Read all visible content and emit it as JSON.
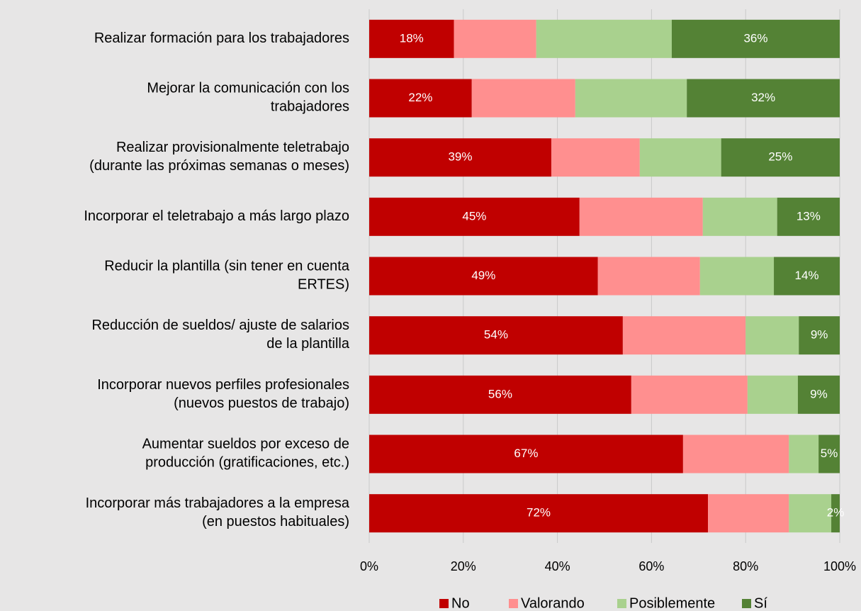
{
  "chart_data": {
    "type": "stacked_barh",
    "categories": [
      "Realizar formación para los trabajadores",
      "Mejorar la comunicación con los\ntrabajadores",
      "Realizar provisionalmente teletrabajo\n(durante las próximas semanas o meses)",
      "Incorporar el teletrabajo a más largo plazo",
      "Reducir la plantilla (sin tener en cuenta\nERTES)",
      "Reducción de sueldos/ ajuste de salarios\nde la plantilla",
      "Incorporar nuevos perfiles profesionales\n(nuevos puestos de trabajo)",
      "Aumentar sueldos por exceso de\nproducción (gratificaciones, etc.)",
      "Incorporar más trabajadores a la empresa\n(en puestos habituales)"
    ],
    "series": [
      {
        "name": "No",
        "color": "#c00000",
        "values": [
          18,
          21.8,
          38.7,
          44.7,
          48.6,
          53.9,
          55.7,
          66.7,
          72
        ],
        "value_labels": [
          "18%",
          "22%",
          "39%",
          "45%",
          "49%",
          "54%",
          "56%",
          "67%",
          "72%"
        ]
      },
      {
        "name": "Valorando",
        "color": "#ff8f8f",
        "values": [
          17.5,
          22,
          18.8,
          26.2,
          21.7,
          26.1,
          24.7,
          22.5,
          17.2
        ]
      },
      {
        "name": "Posiblemente",
        "color": "#a9d18e",
        "values": [
          28.8,
          23.7,
          17.3,
          15.8,
          15.7,
          11.3,
          10.7,
          6.3,
          9
        ]
      },
      {
        "name": "Sí",
        "color": "#548235",
        "values": [
          35.7,
          32.5,
          25.2,
          13.3,
          14,
          8.7,
          8.9,
          4.5,
          1.8
        ],
        "value_labels": [
          "36%",
          "32%",
          "25%",
          "13%",
          "14%",
          "9%",
          "9%",
          "5%",
          "2%"
        ]
      }
    ],
    "xlim": [
      0,
      100
    ],
    "xticks": [
      {
        "value": 0,
        "label": "0%"
      },
      {
        "value": 20,
        "label": "20%"
      },
      {
        "value": 40,
        "label": "40%"
      },
      {
        "value": 60,
        "label": "60%"
      },
      {
        "value": 80,
        "label": "80%"
      },
      {
        "value": 100,
        "label": "100%"
      }
    ],
    "grid": true,
    "legend": "bottom"
  }
}
